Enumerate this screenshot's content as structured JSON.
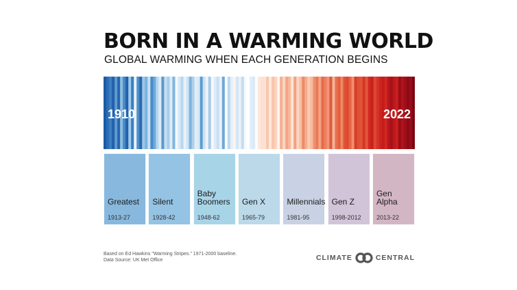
{
  "title": "BORN IN A WARMING WORLD",
  "subtitle": "GLOBAL WARMING WHEN EACH GENERATION BEGINS",
  "chart_data": {
    "type": "heatmap",
    "x_start": 1910,
    "x_end": 2022,
    "start_label": "1910",
    "end_label": "2022",
    "stripe_colors": [
      "#1b5aa6",
      "#2d6db5",
      "#3d7fc0",
      "#2360aa",
      "#5c9bd0",
      "#2a66ae",
      "#8cbde0",
      "#4989c6",
      "#2462ab",
      "#9ccaea",
      "#3b7ec0",
      "#e8f1f9",
      "#4f90ca",
      "#2b6ab0",
      "#9ec8e7",
      "#7ab3dd",
      "#c9e0f2",
      "#4a8ccb",
      "#6ea9d9",
      "#b6d6ee",
      "#dcebf6",
      "#5b9ad1",
      "#c7dff1",
      "#a9cde9",
      "#ddebf5",
      "#80b6de",
      "#f4f8fb",
      "#d7e8f5",
      "#b7d7ee",
      "#e9f2f9",
      "#cfe4f4",
      "#7fb4dd",
      "#aed0ea",
      "#e1eef7",
      "#d8e9f6",
      "#5d9cd2",
      "#cbe2f3",
      "#eef4fa",
      "#a8cbe8",
      "#f5f9fc",
      "#dfecf7",
      "#c8e0f2",
      "#eaf2f9",
      "#6fa8d8",
      "#fbfcfd",
      "#bcd9ef",
      "#e5eff8",
      "#fdf4ef",
      "#d2e6f4",
      "#e8f1f9",
      "#c3ddf1",
      "#f6faff",
      "#ffffff",
      "#e2eef8",
      "#d9e9f6",
      "#fbfcff",
      "#fde7dc",
      "#fde0d2",
      "#fce1d4",
      "#f9c7ae",
      "#fee8dd",
      "#f8c5ac",
      "#fad3c0",
      "#fff3ec",
      "#f5b095",
      "#fbd6c4",
      "#f3a586",
      "#f6b99d",
      "#fde3d6",
      "#f2a182",
      "#fad6c5",
      "#f7c0a4",
      "#ee8a68",
      "#f4ac8e",
      "#f9cbb3",
      "#f7bb9f",
      "#ef9070",
      "#ec7a57",
      "#f3a385",
      "#e76b4b",
      "#ec7f5c",
      "#f0957a",
      "#e15a3d",
      "#f5b295",
      "#e8704f",
      "#e35f41",
      "#ee8766",
      "#df5338",
      "#dd4a31",
      "#e56446",
      "#f08f6f",
      "#d93d2b",
      "#de5035",
      "#e05539",
      "#d63528",
      "#e15639",
      "#d12a22",
      "#c91f1d",
      "#dc4732",
      "#d53328",
      "#cc2420",
      "#c41b1b",
      "#d02820",
      "#b8161c",
      "#a8111a",
      "#be181c",
      "#c8201e",
      "#9c0d18",
      "#b0131b",
      "#a00f19",
      "#8d0a16",
      "#9a0d18",
      "#7d0614"
    ]
  },
  "generations": [
    {
      "name": "Greatest",
      "years": "1913-27",
      "color": "#88b8dd"
    },
    {
      "name": "Silent",
      "years": "1928-42",
      "color": "#94c3e4"
    },
    {
      "name": "Baby\nBoomers",
      "years": "1948-62",
      "color": "#a8d4e8"
    },
    {
      "name": "Gen X",
      "years": "1965-79",
      "color": "#bcd9ea"
    },
    {
      "name": "Millennials",
      "years": "1981-95",
      "color": "#c9d2e4"
    },
    {
      "name": "Gen Z",
      "years": "1998-2012",
      "color": "#d1c4d8"
    },
    {
      "name": "Gen\nAlpha",
      "years": "2013-22",
      "color": "#d3b6c4"
    }
  ],
  "footnote": {
    "line1": "Based on Ed Hawkins \"Warming Stripes.\" 1971-2000 baseline.",
    "line2": "Data Source: UK Met Office"
  },
  "brand": {
    "word1": "CLIMATE",
    "word2": "CENTRAL",
    "logo_color": "#555555"
  }
}
